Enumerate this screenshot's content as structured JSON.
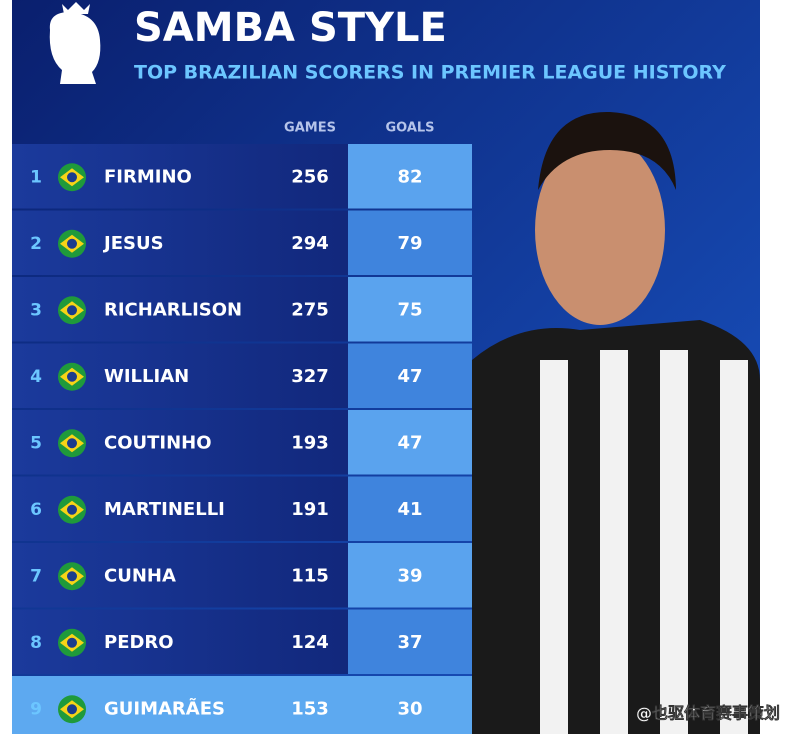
{
  "header": {
    "title": "SAMBA STYLE",
    "subtitle": "TOP BRAZILIAN SCORERS IN PREMIER LEAGUE HISTORY"
  },
  "table": {
    "columns": [
      "GAMES",
      "GOALS"
    ],
    "rows": [
      {
        "rank": "1",
        "name": "FIRMINO",
        "games": "256",
        "goals": "82"
      },
      {
        "rank": "2",
        "name": "JESUS",
        "games": "294",
        "goals": "79"
      },
      {
        "rank": "3",
        "name": "RICHARLISON",
        "games": "275",
        "goals": "75"
      },
      {
        "rank": "4",
        "name": "WILLIAN",
        "games": "327",
        "goals": "47"
      },
      {
        "rank": "5",
        "name": "COUTINHO",
        "games": "193",
        "goals": "47"
      },
      {
        "rank": "6",
        "name": "MARTINELLI",
        "games": "191",
        "goals": "41"
      },
      {
        "rank": "7",
        "name": "CUNHA",
        "games": "115",
        "goals": "39"
      },
      {
        "rank": "8",
        "name": "PEDRO",
        "games": "124",
        "goals": "37"
      },
      {
        "rank": "9",
        "name": "GUIMARÃES",
        "games": "153",
        "goals": "30"
      }
    ]
  },
  "watermark": "@也驱体育赛事策划"
}
